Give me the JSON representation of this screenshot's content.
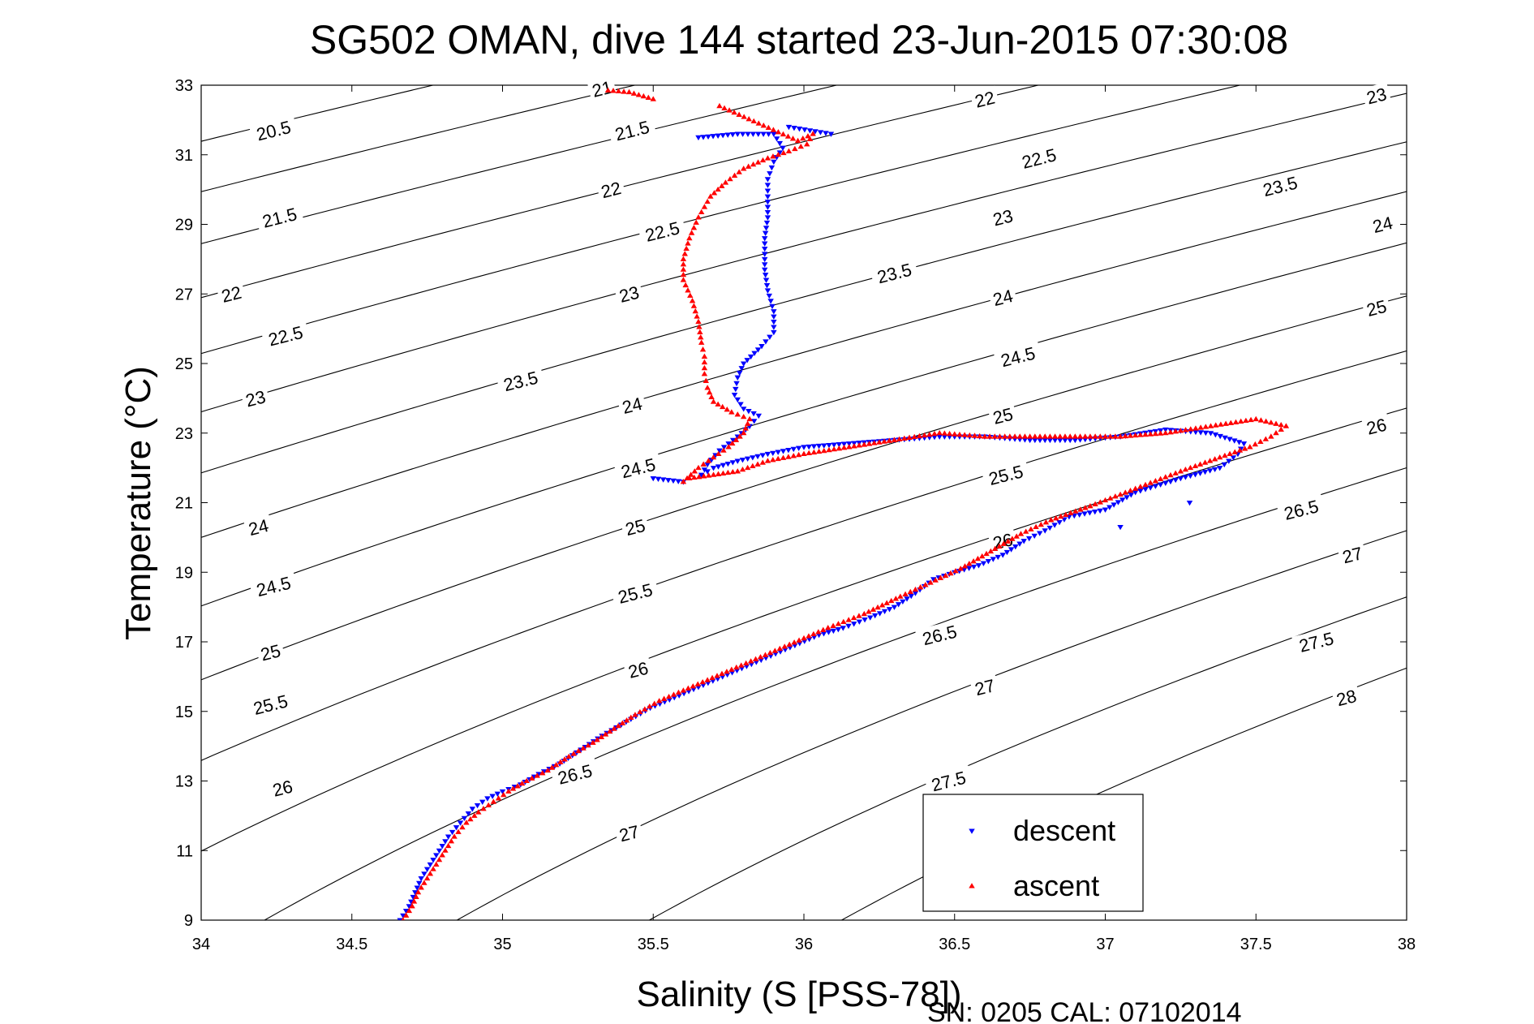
{
  "chart_data": {
    "type": "scatter",
    "title": "SG502 OMAN, dive 144 started 23-Jun-2015 07:30:08",
    "xlabel": "Salinity (S [PSS-78])",
    "ylabel": "Temperature (°C)",
    "xlim": [
      34,
      38
    ],
    "ylim": [
      9,
      33
    ],
    "xticks": [
      34,
      34.5,
      35,
      35.5,
      36,
      36.5,
      37,
      37.5,
      38
    ],
    "xtick_labels": [
      "34",
      "34.5",
      "35",
      "35.5",
      "36",
      "36.5",
      "37",
      "37.5",
      "38"
    ],
    "yticks": [
      9,
      11,
      13,
      15,
      17,
      19,
      21,
      23,
      25,
      27,
      29,
      31,
      33
    ],
    "ytick_labels": [
      "9",
      "11",
      "13",
      "15",
      "17",
      "19",
      "21",
      "23",
      "25",
      "27",
      "29",
      "31",
      "33"
    ],
    "grid": false,
    "legend_position": "bottom-right",
    "density_contours": {
      "levels": [
        20.5,
        21,
        21.5,
        22,
        22.5,
        23,
        23.5,
        24,
        24.5,
        25,
        25.5,
        26,
        26.5,
        27,
        27.5,
        28
      ],
      "labels": [
        {
          "text": "20.5",
          "s": 34.24,
          "t": 31.7
        },
        {
          "text": "21",
          "s": 35.33,
          "t": 32.9
        },
        {
          "text": "21.5",
          "s": 34.26,
          "t": 29.2
        },
        {
          "text": "21.5",
          "s": 35.43,
          "t": 31.7
        },
        {
          "text": "22",
          "s": 34.1,
          "t": 27.0
        },
        {
          "text": "22",
          "s": 35.36,
          "t": 30.0
        },
        {
          "text": "22",
          "s": 36.6,
          "t": 32.6
        },
        {
          "text": "22.5",
          "s": 34.28,
          "t": 25.8
        },
        {
          "text": "22.5",
          "s": 35.53,
          "t": 28.8
        },
        {
          "text": "22.5",
          "s": 36.78,
          "t": 30.9
        },
        {
          "text": "23",
          "s": 34.18,
          "t": 24.0
        },
        {
          "text": "23",
          "s": 35.42,
          "t": 27.0
        },
        {
          "text": "23",
          "s": 36.66,
          "t": 29.2
        },
        {
          "text": "23",
          "s": 37.9,
          "t": 32.7
        },
        {
          "text": "23.5",
          "s": 35.06,
          "t": 24.5
        },
        {
          "text": "23.5",
          "s": 36.3,
          "t": 27.6
        },
        {
          "text": "23.5",
          "s": 37.58,
          "t": 30.1
        },
        {
          "text": "24",
          "s": 35.43,
          "t": 23.8
        },
        {
          "text": "24",
          "s": 36.66,
          "t": 26.9
        },
        {
          "text": "24",
          "s": 37.92,
          "t": 29.0
        },
        {
          "text": "24",
          "s": 34.19,
          "t": 20.3
        },
        {
          "text": "24.5",
          "s": 35.45,
          "t": 22.0
        },
        {
          "text": "24.5",
          "s": 36.71,
          "t": 25.2
        },
        {
          "text": "24.5",
          "s": 34.24,
          "t": 18.6
        },
        {
          "text": "25",
          "s": 35.44,
          "t": 20.3
        },
        {
          "text": "25",
          "s": 36.66,
          "t": 23.5
        },
        {
          "text": "25",
          "s": 37.9,
          "t": 26.6
        },
        {
          "text": "25",
          "s": 34.23,
          "t": 16.7
        },
        {
          "text": "25.5",
          "s": 34.23,
          "t": 15.2
        },
        {
          "text": "25.5",
          "s": 35.44,
          "t": 18.4
        },
        {
          "text": "25.5",
          "s": 36.67,
          "t": 21.8
        },
        {
          "text": "26",
          "s": 34.27,
          "t": 12.8
        },
        {
          "text": "26",
          "s": 35.45,
          "t": 16.2
        },
        {
          "text": "26",
          "s": 36.66,
          "t": 19.9
        },
        {
          "text": "26",
          "s": 37.9,
          "t": 23.2
        },
        {
          "text": "26.5",
          "s": 35.24,
          "t": 13.2
        },
        {
          "text": "26.5",
          "s": 36.45,
          "t": 17.2
        },
        {
          "text": "26.5",
          "s": 37.65,
          "t": 20.8
        },
        {
          "text": "27",
          "s": 35.42,
          "t": 11.5
        },
        {
          "text": "27",
          "s": 36.6,
          "t": 15.7
        },
        {
          "text": "27",
          "s": 37.82,
          "t": 19.5
        },
        {
          "text": "27.5",
          "s": 36.48,
          "t": 13.0
        },
        {
          "text": "27.5",
          "s": 37.7,
          "t": 17.0
        },
        {
          "text": "28",
          "s": 37.8,
          "t": 15.4
        }
      ]
    },
    "series": [
      {
        "name": "descent",
        "color": "#0000ff",
        "marker": "triangle-down",
        "points": [
          [
            34.66,
            9.0
          ],
          [
            34.69,
            9.4
          ],
          [
            34.71,
            9.8
          ],
          [
            34.73,
            10.2
          ],
          [
            34.76,
            10.6
          ],
          [
            34.79,
            11.0
          ],
          [
            34.82,
            11.4
          ],
          [
            34.86,
            11.8
          ],
          [
            34.9,
            12.2
          ],
          [
            34.95,
            12.5
          ],
          [
            35.0,
            12.7
          ],
          [
            35.06,
            12.9
          ],
          [
            35.12,
            13.2
          ],
          [
            35.19,
            13.5
          ],
          [
            35.26,
            13.9
          ],
          [
            35.33,
            14.3
          ],
          [
            35.41,
            14.7
          ],
          [
            35.49,
            15.1
          ],
          [
            35.57,
            15.4
          ],
          [
            35.65,
            15.7
          ],
          [
            35.73,
            16.0
          ],
          [
            35.81,
            16.3
          ],
          [
            35.89,
            16.6
          ],
          [
            35.97,
            16.9
          ],
          [
            36.05,
            17.2
          ],
          [
            36.13,
            17.4
          ],
          [
            36.22,
            17.7
          ],
          [
            36.3,
            18.0
          ],
          [
            36.37,
            18.4
          ],
          [
            36.43,
            18.8
          ],
          [
            36.5,
            19.0
          ],
          [
            36.58,
            19.2
          ],
          [
            36.66,
            19.5
          ],
          [
            36.73,
            19.9
          ],
          [
            36.8,
            20.2
          ],
          [
            36.88,
            20.6
          ],
          [
            37.0,
            20.8
          ],
          [
            37.1,
            21.3
          ],
          [
            37.25,
            21.7
          ],
          [
            37.38,
            22.0
          ],
          [
            37.44,
            22.4
          ],
          [
            37.46,
            22.7
          ],
          [
            37.35,
            23.0
          ],
          [
            37.2,
            23.1
          ],
          [
            37.05,
            22.9
          ],
          [
            36.9,
            22.8
          ],
          [
            36.75,
            22.8
          ],
          [
            36.6,
            22.9
          ],
          [
            36.45,
            22.9
          ],
          [
            36.3,
            22.8
          ],
          [
            36.15,
            22.7
          ],
          [
            36.0,
            22.6
          ],
          [
            35.88,
            22.4
          ],
          [
            35.78,
            22.2
          ],
          [
            35.7,
            22.0
          ],
          [
            35.66,
            21.8
          ],
          [
            35.68,
            22.1
          ],
          [
            35.72,
            22.5
          ],
          [
            35.78,
            22.9
          ],
          [
            35.82,
            23.2
          ],
          [
            35.85,
            23.5
          ],
          [
            35.8,
            23.7
          ],
          [
            35.77,
            24.1
          ],
          [
            35.78,
            24.6
          ],
          [
            35.8,
            25.0
          ],
          [
            35.86,
            25.5
          ],
          [
            35.9,
            25.9
          ],
          [
            35.9,
            26.5
          ],
          [
            35.88,
            27.1
          ],
          [
            35.87,
            27.7
          ],
          [
            35.87,
            28.6
          ],
          [
            35.88,
            29.2
          ],
          [
            35.88,
            29.8
          ],
          [
            35.88,
            30.3
          ],
          [
            35.9,
            30.8
          ],
          [
            35.93,
            31.2
          ],
          [
            35.9,
            31.6
          ],
          [
            35.78,
            31.6
          ],
          [
            35.65,
            31.5
          ],
          [
            35.95,
            31.8
          ],
          [
            36.09,
            31.6
          ],
          [
            35.5,
            21.7
          ],
          [
            35.6,
            21.6
          ],
          [
            37.28,
            21.0
          ],
          [
            37.05,
            20.3
          ]
        ]
      },
      {
        "name": "ascent",
        "color": "#ff0000",
        "marker": "triangle-up",
        "points": [
          [
            34.67,
            9.0
          ],
          [
            34.7,
            9.4
          ],
          [
            34.72,
            9.8
          ],
          [
            34.75,
            10.2
          ],
          [
            34.78,
            10.6
          ],
          [
            34.81,
            11.0
          ],
          [
            34.84,
            11.4
          ],
          [
            34.88,
            11.8
          ],
          [
            34.92,
            12.1
          ],
          [
            34.97,
            12.4
          ],
          [
            35.02,
            12.7
          ],
          [
            35.08,
            13.0
          ],
          [
            35.15,
            13.3
          ],
          [
            35.22,
            13.7
          ],
          [
            35.3,
            14.1
          ],
          [
            35.37,
            14.5
          ],
          [
            35.44,
            14.9
          ],
          [
            35.52,
            15.3
          ],
          [
            35.6,
            15.6
          ],
          [
            35.68,
            15.9
          ],
          [
            35.76,
            16.2
          ],
          [
            35.84,
            16.5
          ],
          [
            35.92,
            16.8
          ],
          [
            36.0,
            17.1
          ],
          [
            36.08,
            17.4
          ],
          [
            36.2,
            17.8
          ],
          [
            36.32,
            18.3
          ],
          [
            36.42,
            18.7
          ],
          [
            36.52,
            19.1
          ],
          [
            36.62,
            19.6
          ],
          [
            36.72,
            20.1
          ],
          [
            36.82,
            20.5
          ],
          [
            36.95,
            20.9
          ],
          [
            37.1,
            21.4
          ],
          [
            37.25,
            21.9
          ],
          [
            37.38,
            22.3
          ],
          [
            37.48,
            22.6
          ],
          [
            37.55,
            22.9
          ],
          [
            37.6,
            23.2
          ],
          [
            37.5,
            23.4
          ],
          [
            37.35,
            23.2
          ],
          [
            37.2,
            23.0
          ],
          [
            37.05,
            22.9
          ],
          [
            36.9,
            22.9
          ],
          [
            36.75,
            22.9
          ],
          [
            36.6,
            22.9
          ],
          [
            36.45,
            23.0
          ],
          [
            36.3,
            22.8
          ],
          [
            36.15,
            22.6
          ],
          [
            36.0,
            22.4
          ],
          [
            35.88,
            22.2
          ],
          [
            35.78,
            21.9
          ],
          [
            35.7,
            21.8
          ],
          [
            35.62,
            21.7
          ],
          [
            35.6,
            21.6
          ],
          [
            35.65,
            22.0
          ],
          [
            35.7,
            22.3
          ],
          [
            35.75,
            22.6
          ],
          [
            35.8,
            23.0
          ],
          [
            35.82,
            23.4
          ],
          [
            35.76,
            23.6
          ],
          [
            35.7,
            23.9
          ],
          [
            35.68,
            24.3
          ],
          [
            35.67,
            24.7
          ],
          [
            35.67,
            25.2
          ],
          [
            35.66,
            25.6
          ],
          [
            35.65,
            26.2
          ],
          [
            35.63,
            26.8
          ],
          [
            35.6,
            27.4
          ],
          [
            35.6,
            28.0
          ],
          [
            35.62,
            28.6
          ],
          [
            35.65,
            29.2
          ],
          [
            35.69,
            29.8
          ],
          [
            35.74,
            30.2
          ],
          [
            35.8,
            30.6
          ],
          [
            35.88,
            30.9
          ],
          [
            35.95,
            31.1
          ],
          [
            36.01,
            31.3
          ],
          [
            36.03,
            31.6
          ],
          [
            35.98,
            31.4
          ],
          [
            35.85,
            31.9
          ],
          [
            35.72,
            32.4
          ],
          [
            35.5,
            32.6
          ],
          [
            35.42,
            32.8
          ],
          [
            35.35,
            32.85
          ]
        ]
      }
    ],
    "annotations": [
      "SN: 0205  CAL: 07102014"
    ]
  },
  "legend": {
    "items": [
      {
        "label": "descent",
        "color": "#0000ff",
        "marker": "triangle-down"
      },
      {
        "label": "ascent",
        "color": "#ff0000",
        "marker": "triangle-up"
      }
    ]
  },
  "footer": {
    "text": "SN: 0205  CAL: 07102014"
  }
}
